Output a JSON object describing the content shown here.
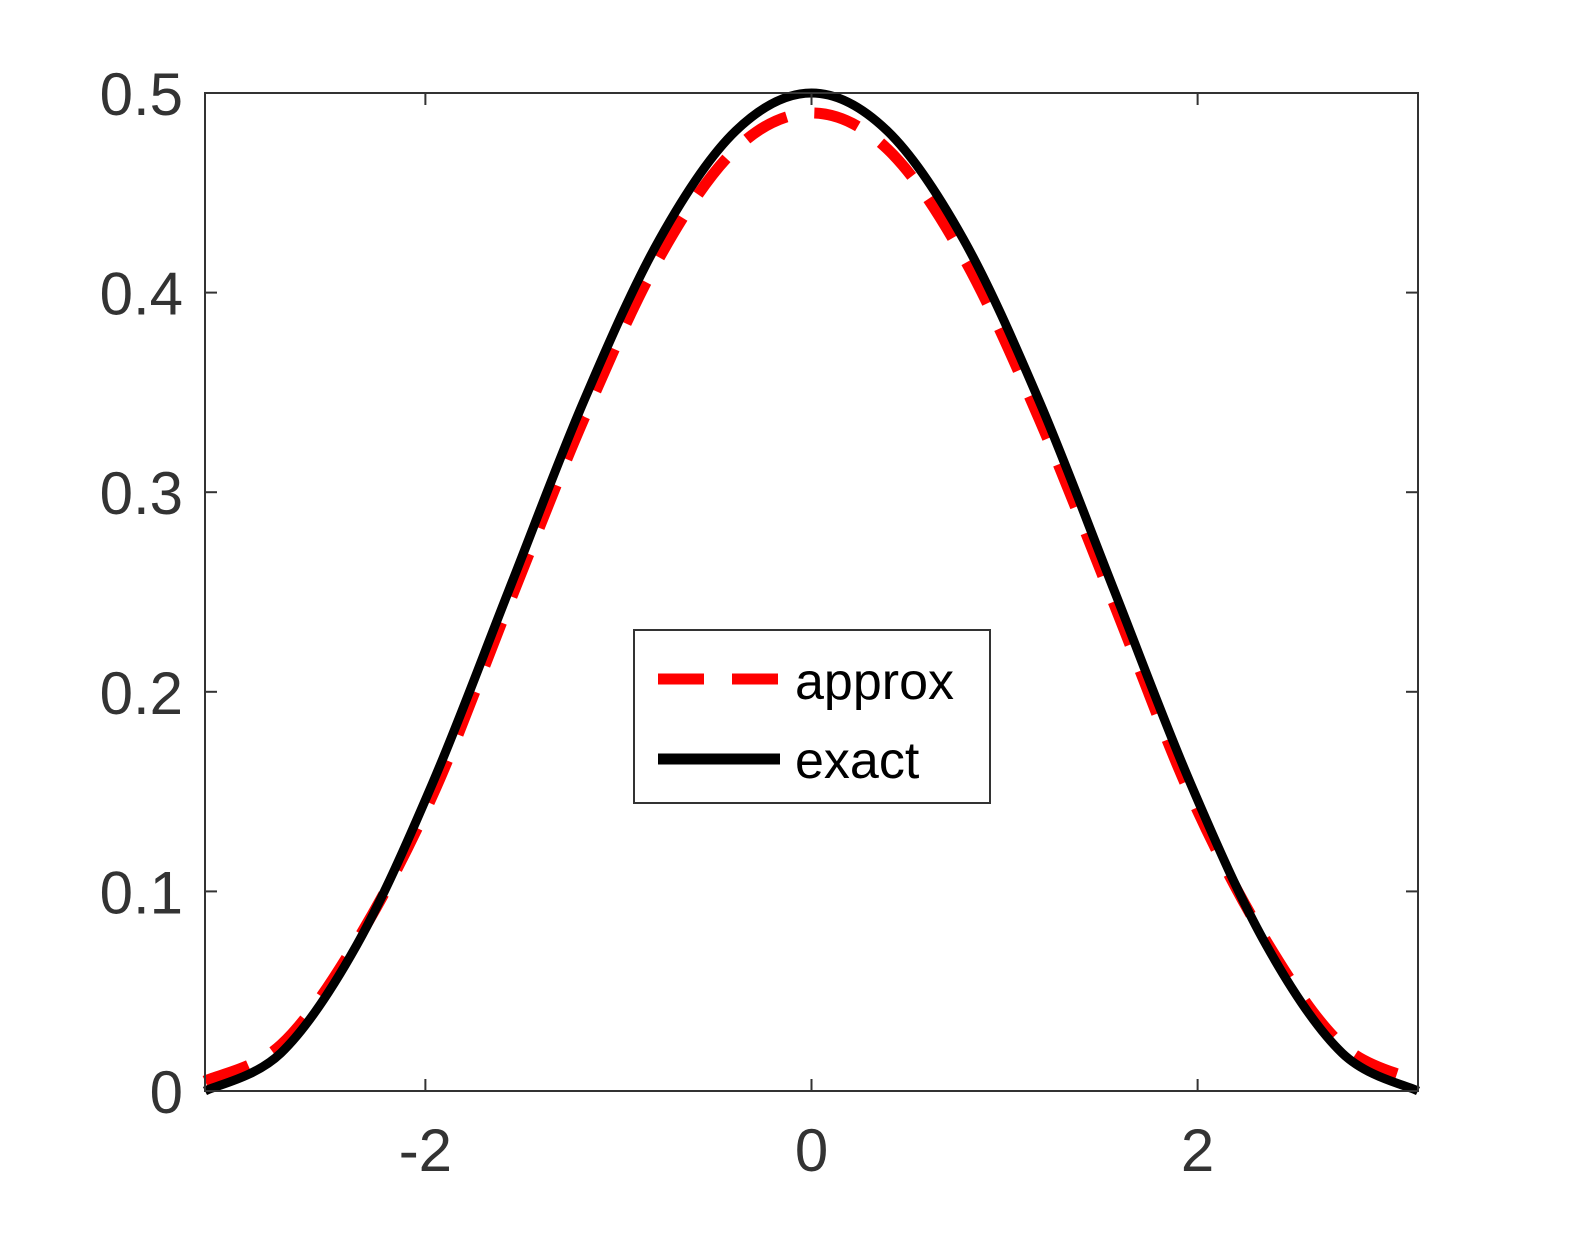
{
  "chart_data": {
    "type": "line",
    "title": "",
    "xlabel": "",
    "ylabel": "",
    "xlim": [
      -3.14159,
      3.14159
    ],
    "ylim": [
      0,
      0.5
    ],
    "x_ticks": [
      -2,
      0,
      2
    ],
    "x_tick_labels": [
      "-2",
      "0",
      "2"
    ],
    "y_ticks": [
      0,
      0.1,
      0.2,
      0.3,
      0.4,
      0.5
    ],
    "y_tick_labels": [
      "0",
      "0.1",
      "0.2",
      "0.3",
      "0.4",
      "0.5"
    ],
    "grid": false,
    "box": true,
    "legend_position": "center",
    "series": [
      {
        "name": "approx",
        "color": "#ff0000",
        "style": "dashed",
        "x": [
          -3.1416,
          -2.7489,
          -2.3562,
          -1.9635,
          -1.5708,
          -1.1781,
          -0.7854,
          -0.3927,
          0.0,
          0.3927,
          0.7854,
          1.1781,
          1.5708,
          1.9635,
          2.3562,
          2.7489,
          3.1416
        ],
        "values": [
          0.005,
          0.023,
          0.075,
          0.148,
          0.243,
          0.337,
          0.418,
          0.472,
          0.49,
          0.472,
          0.418,
          0.337,
          0.243,
          0.148,
          0.075,
          0.023,
          0.005
        ]
      },
      {
        "name": "exact",
        "color": "#000000",
        "style": "solid",
        "x": [
          -3.1416,
          -2.7489,
          -2.3562,
          -1.9635,
          -1.5708,
          -1.1781,
          -0.7854,
          -0.3927,
          0.0,
          0.3927,
          0.7854,
          1.1781,
          1.5708,
          1.9635,
          2.3562,
          2.7489,
          3.1416
        ],
        "values": [
          0.0,
          0.019,
          0.073,
          0.154,
          0.25,
          0.346,
          0.427,
          0.481,
          0.5,
          0.481,
          0.427,
          0.346,
          0.25,
          0.154,
          0.073,
          0.019,
          0.0
        ]
      }
    ]
  }
}
